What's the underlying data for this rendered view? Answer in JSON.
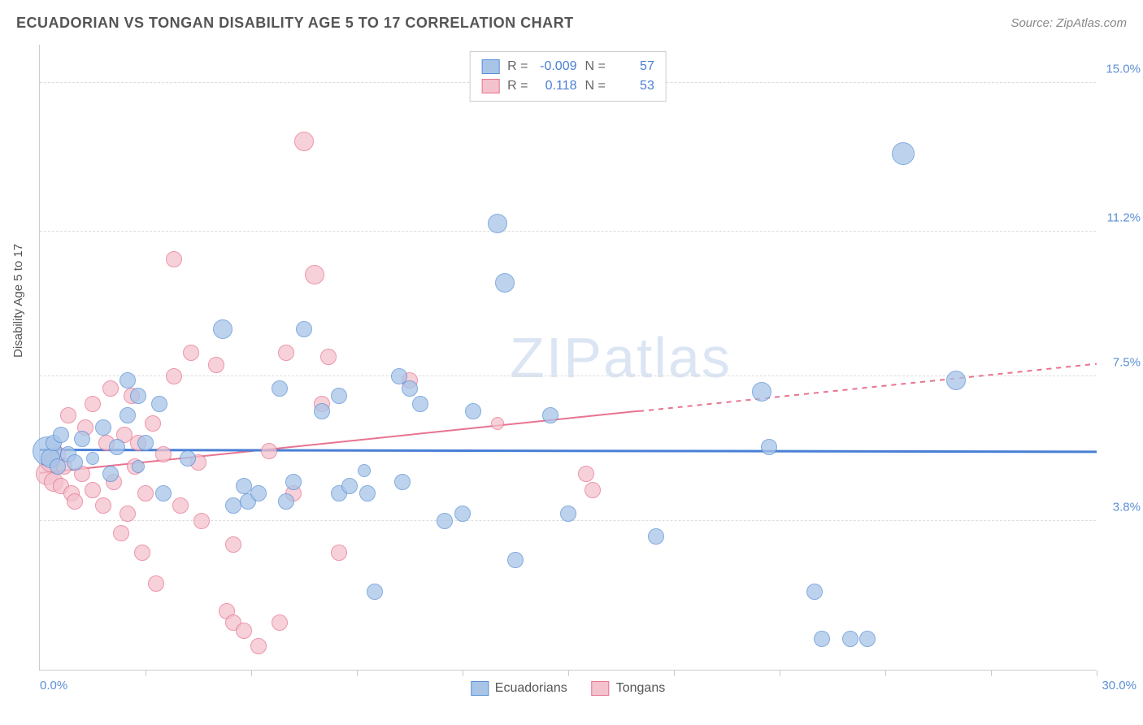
{
  "header": {
    "title": "ECUADORIAN VS TONGAN DISABILITY AGE 5 TO 17 CORRELATION CHART",
    "source": "Source: ZipAtlas.com"
  },
  "chart": {
    "y_label": "Disability Age 5 to 17",
    "x_min_label": "0.0%",
    "x_max_label": "30.0%",
    "watermark_bold": "ZIP",
    "watermark_thin": "atlas",
    "xlim": [
      0,
      30
    ],
    "ylim": [
      0,
      16
    ],
    "y_gridlines": [
      3.8,
      7.5,
      11.2,
      15.0
    ],
    "y_tick_labels": [
      "3.8%",
      "7.5%",
      "11.2%",
      "15.0%"
    ],
    "x_ticks": [
      3,
      6,
      9,
      12,
      15,
      18,
      21,
      24,
      27,
      30
    ],
    "background_color": "#ffffff",
    "grid_color": "#dddddd"
  },
  "series": {
    "ecuadorians": {
      "label": "Ecuadorians",
      "fill": "#a8c5e8",
      "stroke": "#5b8fd6",
      "r": -0.009,
      "n": 57,
      "trend": {
        "y1": 5.6,
        "y2": 5.55,
        "x1": 0,
        "x2": 30,
        "color": "#4a7fd6",
        "width": 3,
        "solid_to_x": 30
      },
      "points": [
        [
          0.2,
          5.6,
          18
        ],
        [
          0.3,
          5.4,
          12
        ],
        [
          0.4,
          5.8,
          10
        ],
        [
          0.5,
          5.2,
          10
        ],
        [
          0.6,
          6.0,
          10
        ],
        [
          0.8,
          5.5,
          10
        ],
        [
          1.0,
          5.3,
          10
        ],
        [
          1.2,
          5.9,
          10
        ],
        [
          1.5,
          5.4,
          8
        ],
        [
          1.8,
          6.2,
          10
        ],
        [
          2.0,
          5.0,
          10
        ],
        [
          2.2,
          5.7,
          10
        ],
        [
          2.5,
          6.5,
          10
        ],
        [
          2.8,
          5.2,
          8
        ],
        [
          2.5,
          7.4,
          10
        ],
        [
          2.8,
          7.0,
          10
        ],
        [
          3.0,
          5.8,
          10
        ],
        [
          3.5,
          4.5,
          10
        ],
        [
          3.4,
          6.8,
          10
        ],
        [
          4.2,
          5.4,
          10
        ],
        [
          5.2,
          8.7,
          12
        ],
        [
          5.5,
          4.2,
          10
        ],
        [
          5.8,
          4.7,
          10
        ],
        [
          5.9,
          4.3,
          10
        ],
        [
          6.2,
          4.5,
          10
        ],
        [
          7.0,
          4.3,
          10
        ],
        [
          6.8,
          7.2,
          10
        ],
        [
          7.2,
          4.8,
          10
        ],
        [
          7.5,
          8.7,
          10
        ],
        [
          8.0,
          6.6,
          10
        ],
        [
          8.5,
          4.5,
          10
        ],
        [
          8.5,
          7.0,
          10
        ],
        [
          8.8,
          4.7,
          10
        ],
        [
          9.2,
          5.1,
          8
        ],
        [
          9.3,
          4.5,
          10
        ],
        [
          9.5,
          2.0,
          10
        ],
        [
          10.2,
          7.5,
          10
        ],
        [
          10.5,
          7.2,
          10
        ],
        [
          10.3,
          4.8,
          10
        ],
        [
          10.8,
          6.8,
          10
        ],
        [
          11.5,
          3.8,
          10
        ],
        [
          12.0,
          4.0,
          10
        ],
        [
          12.3,
          6.6,
          10
        ],
        [
          13.0,
          11.4,
          12
        ],
        [
          13.2,
          9.9,
          12
        ],
        [
          13.5,
          2.8,
          10
        ],
        [
          14.5,
          6.5,
          10
        ],
        [
          15.0,
          4.0,
          10
        ],
        [
          17.5,
          3.4,
          10
        ],
        [
          20.5,
          7.1,
          12
        ],
        [
          20.7,
          5.7,
          10
        ],
        [
          22.0,
          2.0,
          10
        ],
        [
          22.2,
          0.8,
          10
        ],
        [
          23.0,
          0.8,
          10
        ],
        [
          24.5,
          13.2,
          14
        ],
        [
          26.0,
          7.4,
          12
        ],
        [
          23.5,
          0.8,
          10
        ]
      ]
    },
    "tongans": {
      "label": "Tongans",
      "fill": "#f4c2cd",
      "stroke": "#e8738f",
      "r": 0.118,
      "n": 53,
      "trend": {
        "y1": 5.0,
        "y2": 7.8,
        "x1": 0,
        "x2": 30,
        "color": "#e8738f",
        "width": 2,
        "solid_to_x": 17
      },
      "points": [
        [
          0.2,
          5.0,
          14
        ],
        [
          0.3,
          5.3,
          12
        ],
        [
          0.4,
          4.8,
          12
        ],
        [
          0.5,
          5.5,
          10
        ],
        [
          0.6,
          4.7,
          10
        ],
        [
          0.7,
          5.2,
          10
        ],
        [
          0.9,
          4.5,
          10
        ],
        [
          0.8,
          6.5,
          10
        ],
        [
          1.0,
          4.3,
          10
        ],
        [
          1.2,
          5.0,
          10
        ],
        [
          1.3,
          6.2,
          10
        ],
        [
          1.5,
          4.6,
          10
        ],
        [
          1.5,
          6.8,
          10
        ],
        [
          1.8,
          4.2,
          10
        ],
        [
          1.9,
          5.8,
          10
        ],
        [
          2.0,
          7.2,
          10
        ],
        [
          2.1,
          4.8,
          10
        ],
        [
          2.3,
          3.5,
          10
        ],
        [
          2.4,
          6.0,
          10
        ],
        [
          2.5,
          4.0,
          10
        ],
        [
          2.6,
          7.0,
          10
        ],
        [
          2.7,
          5.2,
          10
        ],
        [
          2.9,
          3.0,
          10
        ],
        [
          2.8,
          5.8,
          10
        ],
        [
          3.0,
          4.5,
          10
        ],
        [
          3.2,
          6.3,
          10
        ],
        [
          3.5,
          5.5,
          10
        ],
        [
          3.3,
          2.2,
          10
        ],
        [
          3.8,
          10.5,
          10
        ],
        [
          3.8,
          7.5,
          10
        ],
        [
          4.0,
          4.2,
          10
        ],
        [
          4.3,
          8.1,
          10
        ],
        [
          4.5,
          5.3,
          10
        ],
        [
          4.6,
          3.8,
          10
        ],
        [
          5.0,
          7.8,
          10
        ],
        [
          5.3,
          1.5,
          10
        ],
        [
          5.5,
          1.2,
          10
        ],
        [
          5.8,
          1.0,
          10
        ],
        [
          5.5,
          3.2,
          10
        ],
        [
          6.2,
          0.6,
          10
        ],
        [
          6.5,
          5.6,
          10
        ],
        [
          6.8,
          1.2,
          10
        ],
        [
          7.0,
          8.1,
          10
        ],
        [
          7.2,
          4.5,
          10
        ],
        [
          7.5,
          13.5,
          12
        ],
        [
          7.8,
          10.1,
          12
        ],
        [
          8.2,
          8.0,
          10
        ],
        [
          8.0,
          6.8,
          10
        ],
        [
          8.5,
          3.0,
          10
        ],
        [
          10.5,
          7.4,
          10
        ],
        [
          15.5,
          5.0,
          10
        ],
        [
          15.7,
          4.6,
          10
        ],
        [
          13.0,
          6.3,
          8
        ]
      ]
    }
  },
  "stats_box": {
    "r_label": "R =",
    "n_label": "N ="
  }
}
